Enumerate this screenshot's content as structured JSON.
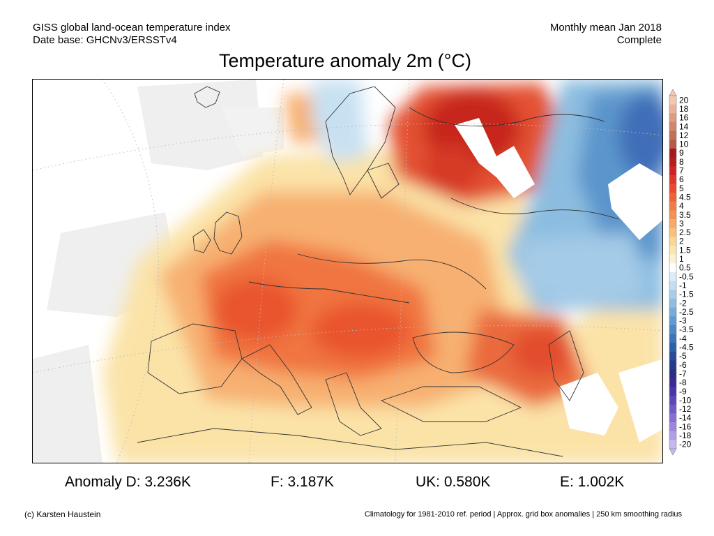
{
  "header": {
    "left_line1": "GISS global land-ocean temperature index",
    "left_line2": "Date base: GHCNv3/ERSSTv4",
    "right_line1": "Monthly mean Jan 2018",
    "right_line2": "Complete"
  },
  "title": "Temperature anomaly 2m (°C)",
  "legend": {
    "labels": [
      "20",
      "18",
      "16",
      "14",
      "12",
      "10",
      "9",
      "8",
      "7",
      "6",
      "5",
      "4.5",
      "4",
      "3.5",
      "3",
      "2.5",
      "2",
      "1.5",
      "1",
      "0.5",
      "-0.5",
      "-1",
      "-1.5",
      "-2",
      "-2.5",
      "-3",
      "-3.5",
      "-4",
      "-4.5",
      "-5",
      "-6",
      "-7",
      "-8",
      "-9",
      "-10",
      "-12",
      "-14",
      "-16",
      "-18",
      "-20"
    ],
    "colors": [
      "#f2c8b0",
      "#e9b39a",
      "#dc9c82",
      "#cf866c",
      "#c27059",
      "#b35b47",
      "#a51a1a",
      "#b61d1d",
      "#cf2424",
      "#e0362c",
      "#ea4a30",
      "#f0623a",
      "#f37b45",
      "#f59355",
      "#f7aa66",
      "#f9c07a",
      "#fbd693",
      "#fbe6ad",
      "#fbf2cf",
      "#ffffff",
      "#dbecf7",
      "#c3def2",
      "#a9cde9",
      "#8ebde1",
      "#75acd8",
      "#5f9ad0",
      "#4d87c5",
      "#3d74b9",
      "#2f5fa9",
      "#274b98",
      "#263a8c",
      "#2a2c80",
      "#3a2a95",
      "#4b34a6",
      "#5d46b8",
      "#725ac6",
      "#8870d3",
      "#9d87dd",
      "#b09ee6",
      "#c5b8ef"
    ]
  },
  "stats": {
    "d": "Anomaly D: 3.236K",
    "f": "F: 3.187K",
    "uk": "UK: 0.580K",
    "e": "E: 1.002K"
  },
  "footer": {
    "left": "(c) Karsten Haustein",
    "right": "Climatology for 1981-2010 ref. period | Approx. grid box anomalies | 250 km smoothing radius"
  }
}
